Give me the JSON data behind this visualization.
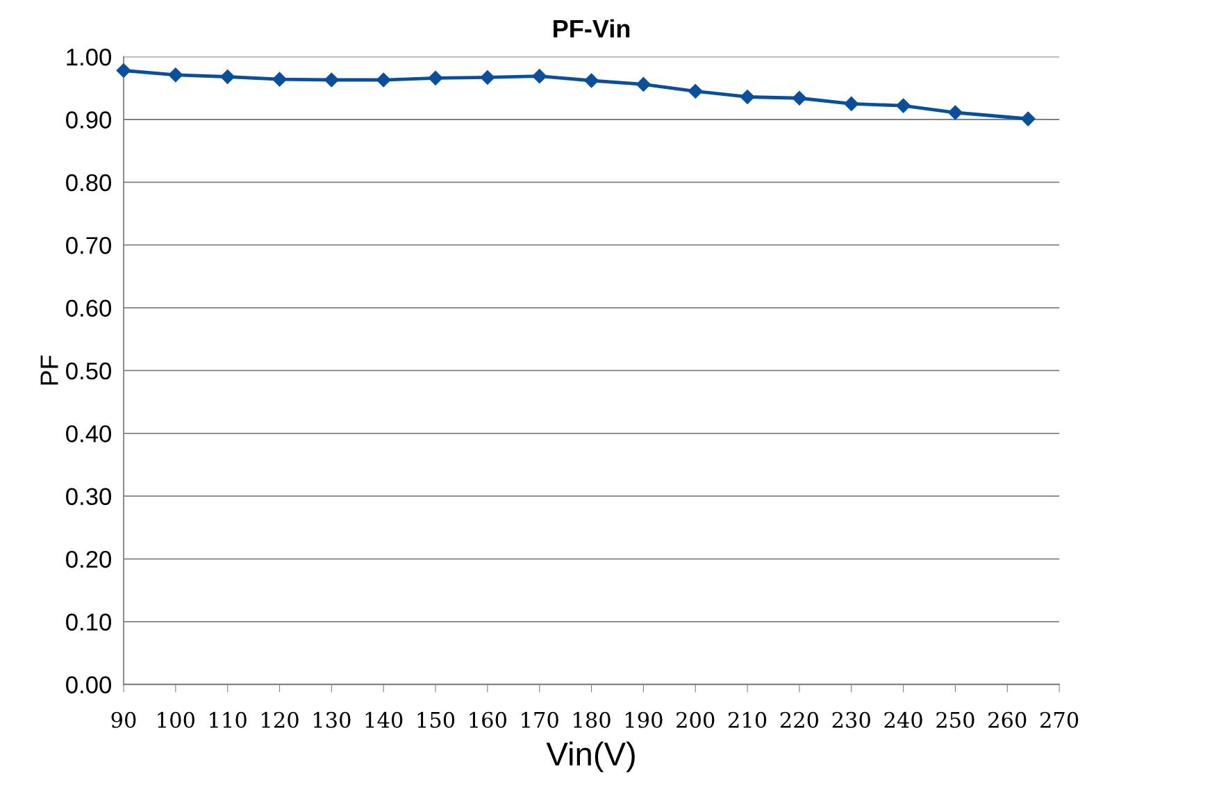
{
  "chart_data": {
    "type": "line",
    "title": "PF-Vin",
    "xlabel": "Vin(V)",
    "ylabel": "PF",
    "x": [
      90,
      100,
      110,
      120,
      130,
      140,
      150,
      160,
      170,
      180,
      190,
      200,
      210,
      220,
      230,
      240,
      250,
      264
    ],
    "series": [
      {
        "color": "#0a4f9c",
        "values": [
          0.978,
          0.971,
          0.968,
          0.964,
          0.963,
          0.963,
          0.966,
          0.967,
          0.969,
          0.962,
          0.956,
          0.945,
          0.936,
          0.934,
          0.925,
          0.922,
          0.911,
          0.901
        ]
      }
    ],
    "xlim": [
      90,
      270
    ],
    "xticks": [
      90,
      100,
      110,
      120,
      130,
      140,
      150,
      160,
      170,
      180,
      190,
      200,
      210,
      220,
      230,
      240,
      250,
      260,
      270
    ],
    "ylim": [
      0,
      1
    ],
    "yticks": [
      {
        "value": 0,
        "label": "0.00"
      },
      {
        "value": 0.1,
        "label": "0.10"
      },
      {
        "value": 0.2,
        "label": "0.20"
      },
      {
        "value": 0.3,
        "label": "0.30"
      },
      {
        "value": 0.4,
        "label": "0.40"
      },
      {
        "value": 0.5,
        "label": "0.50"
      },
      {
        "value": 0.6,
        "label": "0.60"
      },
      {
        "value": 0.7,
        "label": "0.70"
      },
      {
        "value": 0.8,
        "label": "0.80"
      },
      {
        "value": 0.9,
        "label": "0.90"
      },
      {
        "value": 1.0,
        "label": "1.00"
      }
    ],
    "grid": "y",
    "marker": "diamond",
    "line_style": "solid",
    "legend": false
  }
}
